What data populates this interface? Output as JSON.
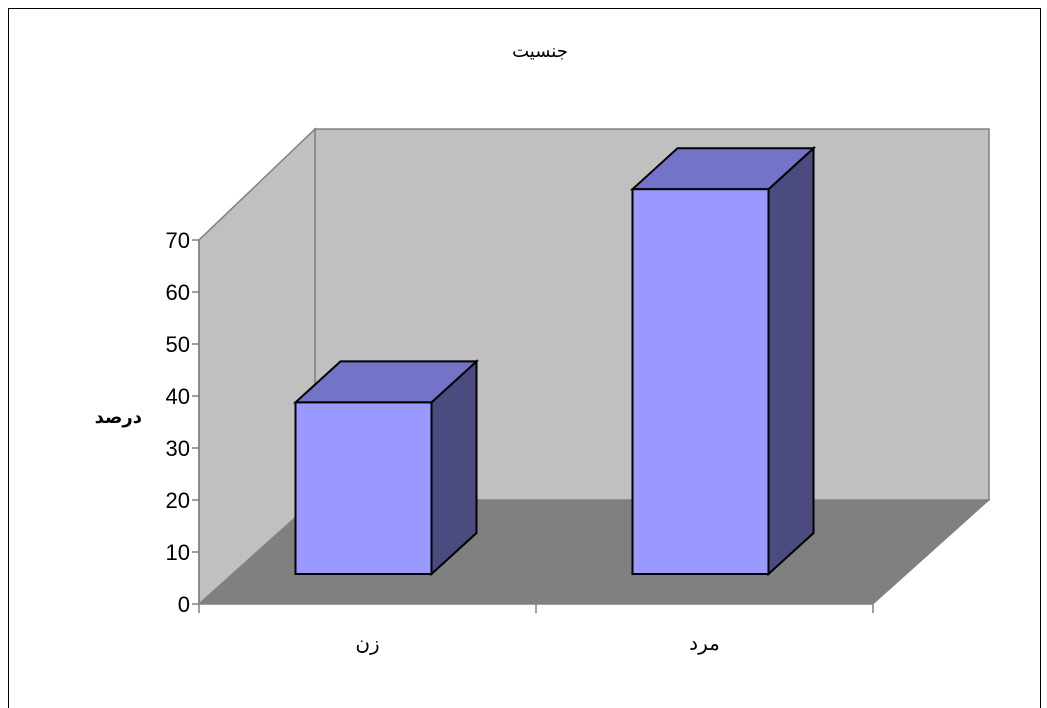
{
  "chart_data": {
    "type": "bar",
    "style": "3d-column",
    "title": "جنسیت",
    "ylabel": "درصد",
    "xlabel": "",
    "categories": [
      "زن",
      "مرد"
    ],
    "values": [
      33,
      74
    ],
    "ylim": [
      0,
      70
    ],
    "yticks": [
      0,
      10,
      20,
      30,
      40,
      50,
      60,
      70
    ],
    "grid": false,
    "legend": "none",
    "colors": {
      "bar_front": "#9999ff",
      "bar_top": "#7373c8",
      "bar_side": "#4b4b80",
      "wall": "#c0c0c0",
      "floor": "#808080",
      "border": "#000000"
    }
  }
}
